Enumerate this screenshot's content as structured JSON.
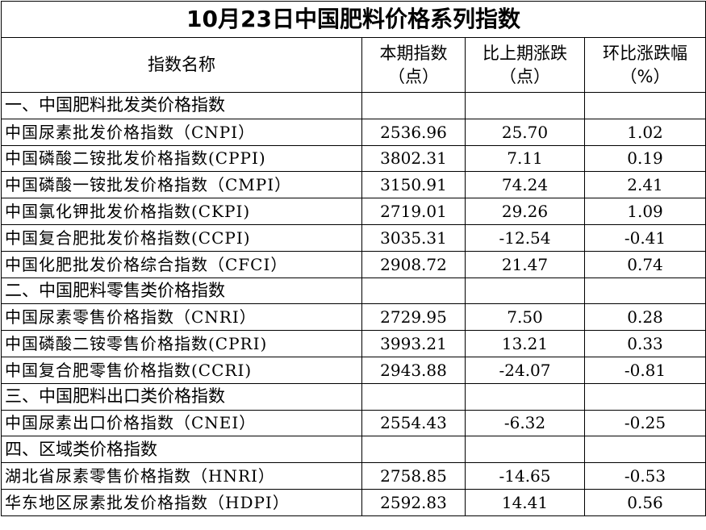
{
  "title": "10月23日中国肥料价格系列指数",
  "headers": {
    "name": "指数名称",
    "index_l1": "本期指数",
    "index_l2": "（点）",
    "change_l1": "比上期涨跌",
    "change_l2": "（点）",
    "pct_l1": "环比涨跌幅",
    "pct_l2": "（%）"
  },
  "sections": [
    {
      "title": "一、中国肥料批发类价格指数",
      "rows": [
        {
          "name": "中国尿素批发价格指数（CNPI）",
          "index": "2536.96",
          "change": "25.70",
          "pct": "1.02"
        },
        {
          "name": "中国磷酸二铵批发价格指数(CPPI)",
          "index": "3802.31",
          "change": "7.11",
          "pct": "0.19"
        },
        {
          "name": "中国磷酸一铵批发价格指数（CMPI）",
          "index": "3150.91",
          "change": "74.24",
          "pct": "2.41"
        },
        {
          "name": "中国氯化钾批发价格指数(CKPI)",
          "index": "2719.01",
          "change": "29.26",
          "pct": "1.09"
        },
        {
          "name": "中国复合肥批发价格指数(CCPI)",
          "index": "3035.31",
          "change": "-12.54",
          "pct": "-0.41"
        },
        {
          "name": "中国化肥批发价格综合指数（CFCI）",
          "index": "2908.72",
          "change": "21.47",
          "pct": "0.74"
        }
      ]
    },
    {
      "title": "二、中国肥料零售类价格指数",
      "rows": [
        {
          "name": "中国尿素零售价格指数（CNRI）",
          "index": "2729.95",
          "change": "7.50",
          "pct": "0.28"
        },
        {
          "name": "中国磷酸二铵零售价格指数(CPRI)",
          "index": "3993.21",
          "change": "13.21",
          "pct": "0.33"
        },
        {
          "name": "中国复合肥零售价格指数(CCRI)",
          "index": "2943.88",
          "change": "-24.07",
          "pct": "-0.81"
        }
      ]
    },
    {
      "title": "三、中国肥料出口类价格指数",
      "rows": [
        {
          "name": "中国尿素出口价格指数（CNEI）",
          "index": "2554.43",
          "change": "-6.32",
          "pct": "-0.25"
        }
      ]
    },
    {
      "title": "四、区域类价格指数",
      "rows": [
        {
          "name": "湖北省尿素零售价格指数（HNRI）",
          "index": "2758.85",
          "change": "-14.65",
          "pct": "-0.53"
        },
        {
          "name": "华东地区尿素批发价格指数（HDPI）",
          "index": "2592.83",
          "change": "14.41",
          "pct": "0.56"
        }
      ]
    }
  ]
}
